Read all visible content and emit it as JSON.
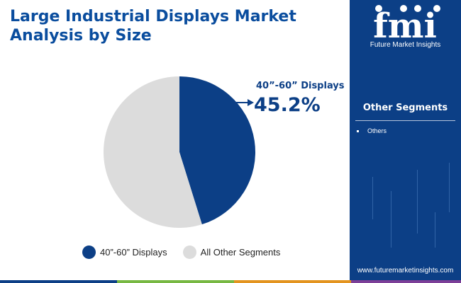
{
  "header": {
    "title": "Large Industrial Displays Market Analysis by Size"
  },
  "brand": {
    "logo_text": "fmi",
    "company": "Future Market Insights",
    "url": "www.futuremarketinsights.com"
  },
  "segments_panel": {
    "title": "Other Segments",
    "items": [
      "Others"
    ]
  },
  "callout": {
    "label": "40”-60” Displays",
    "value": "45.2%"
  },
  "colors": {
    "primary": "#0c3f86",
    "other": "#dcdcdc",
    "title": "#0a4d9e",
    "footer": [
      "#0c3f86",
      "#77b843",
      "#e3941f",
      "#7d3f98"
    ]
  },
  "chart_data": {
    "type": "pie",
    "title": "Large Industrial Displays Market Analysis by Size",
    "slices": [
      {
        "label": "40”-60” Displays",
        "value": 45.2,
        "color": "#0c3f86"
      },
      {
        "label": "All Other Segments",
        "value": 54.8,
        "color": "#dcdcdc"
      }
    ],
    "start": "top",
    "direction": "clockwise",
    "legend_position": "bottom"
  }
}
